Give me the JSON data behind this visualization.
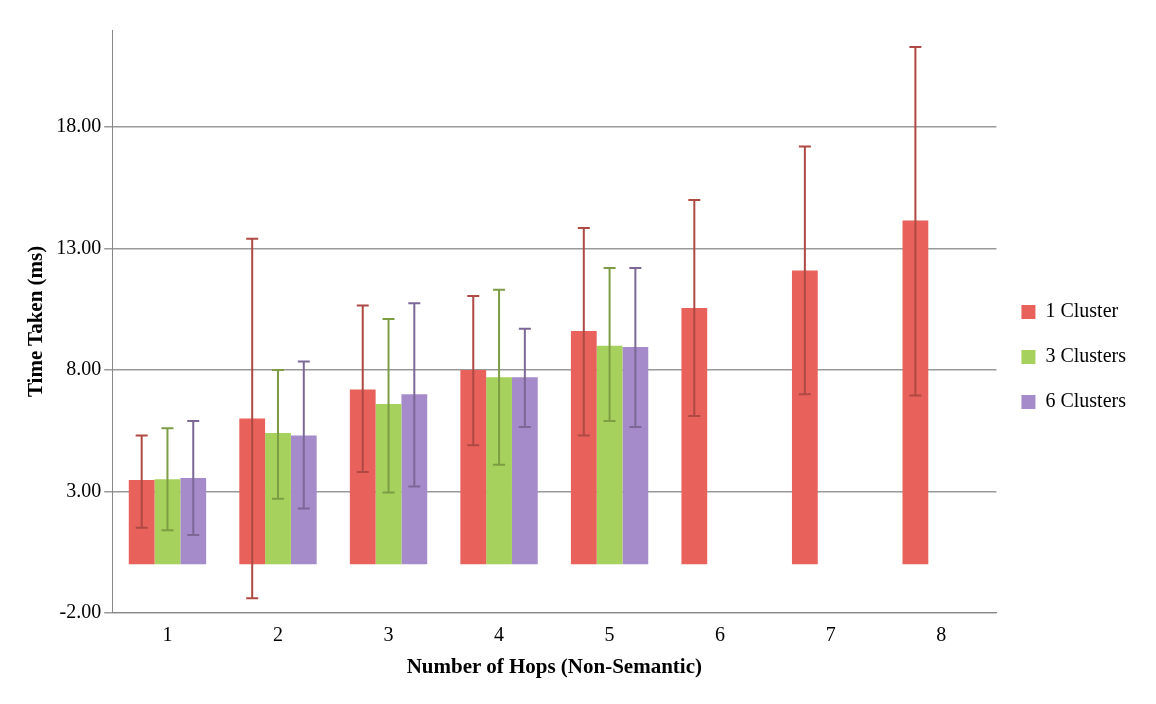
{
  "chart_data": {
    "type": "bar",
    "xlabel": "Number of Hops (Non-Semantic)",
    "ylabel": "Time Taken (ms)",
    "categories": [
      "1",
      "2",
      "3",
      "4",
      "5",
      "6",
      "7",
      "8"
    ],
    "series": [
      {
        "name": "1 Cluster",
        "color": "#e8615a",
        "values": [
          3.47,
          6.0,
          7.2,
          8.0,
          9.6,
          10.55,
          12.1,
          14.15
        ],
        "errors": [
          [
            1.5,
            5.3
          ],
          [
            -1.4,
            13.4
          ],
          [
            3.8,
            10.65
          ],
          [
            4.9,
            11.05
          ],
          [
            5.3,
            13.85
          ],
          [
            6.1,
            15.0
          ],
          [
            7.0,
            17.2
          ],
          [
            6.95,
            21.3
          ]
        ]
      },
      {
        "name": "3 Clusters",
        "color": "#a6d15c",
        "values": [
          3.5,
          5.4,
          6.6,
          7.7,
          9.0,
          null,
          null,
          null
        ],
        "errors": [
          [
            1.4,
            5.6
          ],
          [
            2.7,
            8.0
          ],
          [
            2.95,
            10.1
          ],
          [
            4.1,
            11.3
          ],
          [
            5.9,
            12.2
          ],
          null,
          null,
          null
        ]
      },
      {
        "name": "6 Clusters",
        "color": "#a58bc9",
        "values": [
          3.55,
          5.3,
          7.0,
          7.7,
          8.95,
          null,
          null,
          null
        ],
        "errors": [
          [
            1.2,
            5.9
          ],
          [
            2.3,
            8.35
          ],
          [
            3.2,
            10.75
          ],
          [
            5.65,
            9.7
          ],
          [
            5.65,
            12.2
          ],
          null,
          null,
          null
        ]
      }
    ],
    "ylim": [
      -2,
      22
    ],
    "yticks": [
      {
        "value": -2,
        "label": "-2.00"
      },
      {
        "value": 3,
        "label": "3.00"
      },
      {
        "value": 8,
        "label": "8.00"
      },
      {
        "value": 13,
        "label": "13.00"
      },
      {
        "value": 18,
        "label": "18.00"
      }
    ],
    "grid": "y",
    "legend": "right"
  }
}
